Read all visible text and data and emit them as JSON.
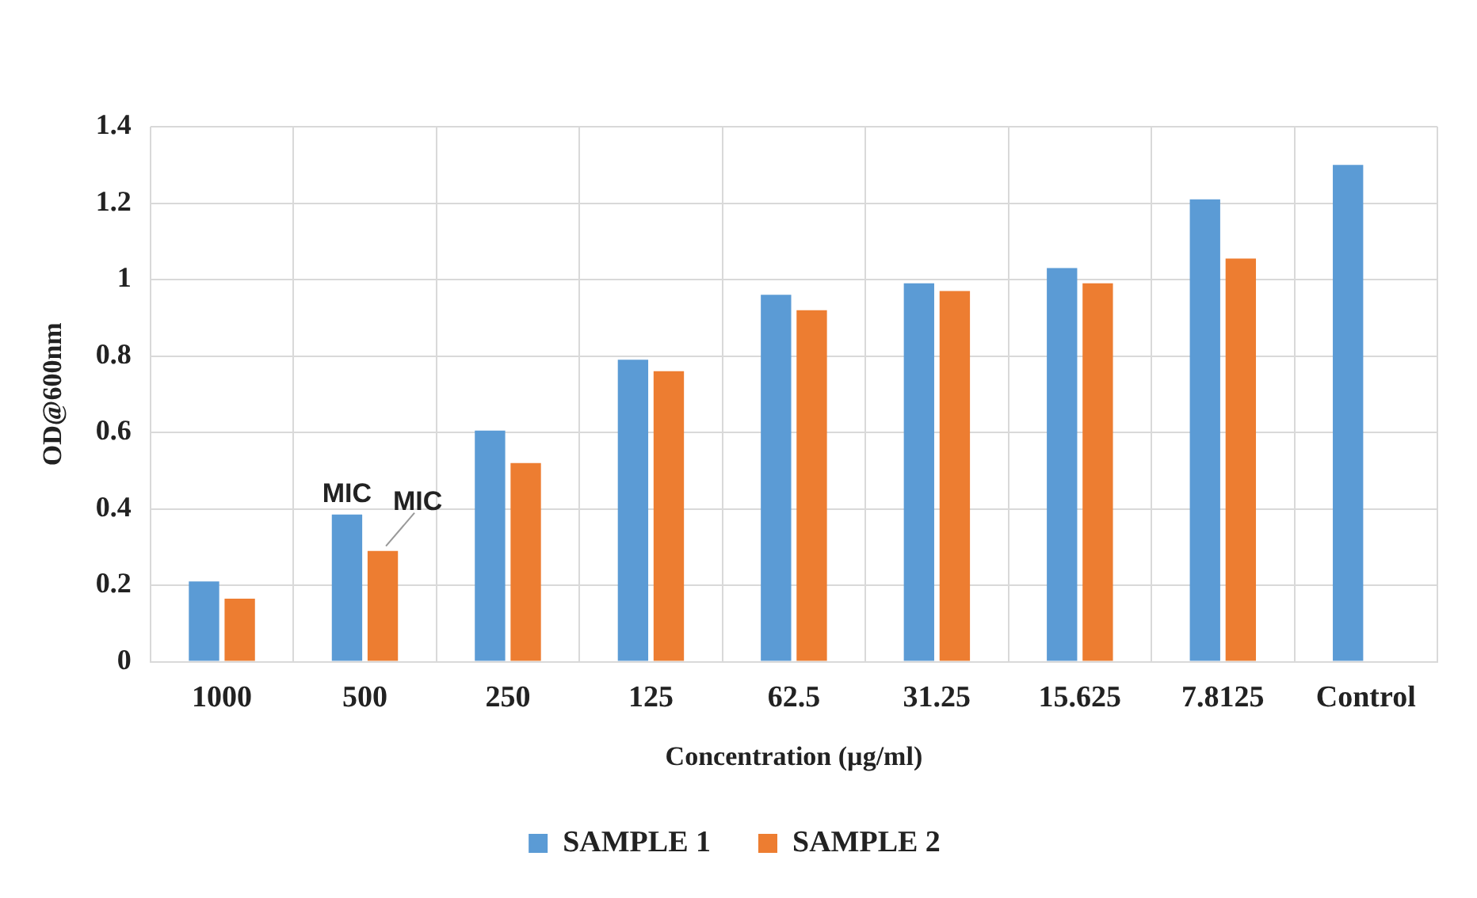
{
  "chart_data": {
    "type": "bar",
    "xlabel": "Concentration (µg/ml)",
    "ylabel": "OD@600nm",
    "categories": [
      "1000",
      "500",
      "250",
      "125",
      "62.5",
      "31.25",
      "15.625",
      "7.8125",
      "Control"
    ],
    "series": [
      {
        "name": "SAMPLE 1",
        "color": "#5b9bd5",
        "values": [
          0.21,
          0.385,
          0.605,
          0.79,
          0.96,
          0.99,
          1.03,
          1.21,
          1.3
        ]
      },
      {
        "name": "SAMPLE 2",
        "color": "#ed7d31",
        "values": [
          0.165,
          0.29,
          0.52,
          0.76,
          0.92,
          0.97,
          0.99,
          1.055,
          null
        ]
      }
    ],
    "ylim": [
      0,
      1.4
    ],
    "yticks": [
      0,
      0.2,
      0.4,
      0.6,
      0.8,
      1,
      1.2,
      1.4
    ],
    "grid": true,
    "legend": "bottom",
    "annotations": [
      {
        "text": "MIC",
        "x": "500",
        "y": 0.385
      },
      {
        "text": "MIC",
        "x": "500",
        "y": 0.29
      }
    ]
  }
}
